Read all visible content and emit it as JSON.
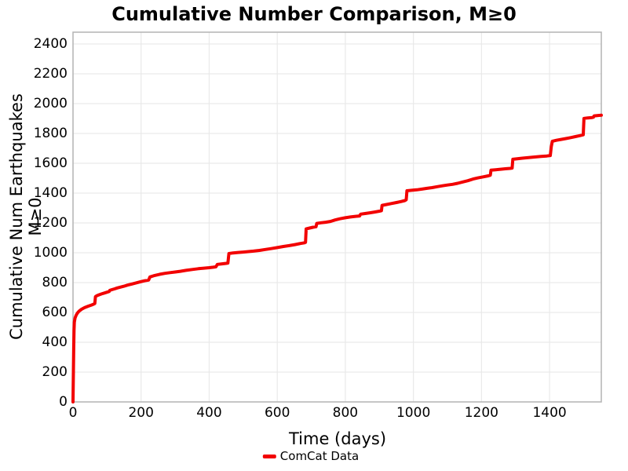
{
  "title": "Cumulative Number Comparison, M≥0",
  "legend": {
    "label": "ComCat Data"
  },
  "chart_data": {
    "type": "line",
    "title": "Cumulative Number Comparison, M≥0",
    "xlabel": "Time (days)",
    "ylabel": "Cumulative Num Earthquakes M≥0",
    "xlim": [
      0,
      1552
    ],
    "ylim": [
      0,
      2479
    ],
    "x_ticks": [
      0,
      200,
      400,
      600,
      800,
      1000,
      1200,
      1400
    ],
    "y_ticks": [
      0,
      200,
      400,
      600,
      800,
      1000,
      1200,
      1400,
      1600,
      1800,
      2000,
      2200,
      2400
    ],
    "grid": true,
    "grid_color": "#e9e9e9",
    "frame_color": "#b3b3b3",
    "background_color": "#ffffff",
    "legend_position": "bottom-center",
    "series": [
      {
        "name": "ComCat Data",
        "color": "#f20000",
        "points": [
          [
            0,
            0
          ],
          [
            1,
            160
          ],
          [
            2,
            360
          ],
          [
            3,
            480
          ],
          [
            4,
            535
          ],
          [
            6,
            562
          ],
          [
            9,
            580
          ],
          [
            13,
            596
          ],
          [
            18,
            609
          ],
          [
            25,
            621
          ],
          [
            34,
            632
          ],
          [
            45,
            642
          ],
          [
            55,
            650
          ],
          [
            62,
            657
          ],
          [
            64,
            660
          ],
          [
            66,
            706
          ],
          [
            70,
            712
          ],
          [
            76,
            718
          ],
          [
            84,
            724
          ],
          [
            92,
            730
          ],
          [
            100,
            736
          ],
          [
            106,
            740
          ],
          [
            108,
            748
          ],
          [
            115,
            753
          ],
          [
            122,
            758
          ],
          [
            130,
            764
          ],
          [
            140,
            770
          ],
          [
            150,
            776
          ],
          [
            160,
            783
          ],
          [
            172,
            790
          ],
          [
            184,
            797
          ],
          [
            196,
            804
          ],
          [
            210,
            812
          ],
          [
            222,
            817
          ],
          [
            226,
            838
          ],
          [
            240,
            848
          ],
          [
            255,
            856
          ],
          [
            270,
            862
          ],
          [
            285,
            867
          ],
          [
            300,
            871
          ],
          [
            315,
            876
          ],
          [
            332,
            882
          ],
          [
            350,
            888
          ],
          [
            368,
            893
          ],
          [
            385,
            897
          ],
          [
            400,
            900
          ],
          [
            412,
            903
          ],
          [
            420,
            906
          ],
          [
            424,
            922
          ],
          [
            438,
            926
          ],
          [
            450,
            929
          ],
          [
            455,
            931
          ],
          [
            458,
            995
          ],
          [
            470,
            999
          ],
          [
            485,
            1002
          ],
          [
            500,
            1005
          ],
          [
            515,
            1008
          ],
          [
            530,
            1011
          ],
          [
            548,
            1016
          ],
          [
            565,
            1022
          ],
          [
            582,
            1028
          ],
          [
            600,
            1035
          ],
          [
            618,
            1042
          ],
          [
            635,
            1048
          ],
          [
            652,
            1055
          ],
          [
            668,
            1062
          ],
          [
            680,
            1067
          ],
          [
            683,
            1070
          ],
          [
            685,
            1160
          ],
          [
            695,
            1166
          ],
          [
            705,
            1171
          ],
          [
            714,
            1175
          ],
          [
            716,
            1197
          ],
          [
            728,
            1201
          ],
          [
            742,
            1205
          ],
          [
            756,
            1210
          ],
          [
            770,
            1220
          ],
          [
            784,
            1228
          ],
          [
            800,
            1235
          ],
          [
            815,
            1240
          ],
          [
            830,
            1244
          ],
          [
            842,
            1247
          ],
          [
            845,
            1259
          ],
          [
            858,
            1263
          ],
          [
            872,
            1268
          ],
          [
            886,
            1273
          ],
          [
            900,
            1279
          ],
          [
            906,
            1282
          ],
          [
            908,
            1318
          ],
          [
            920,
            1323
          ],
          [
            935,
            1330
          ],
          [
            950,
            1337
          ],
          [
            963,
            1343
          ],
          [
            975,
            1350
          ],
          [
            979,
            1356
          ],
          [
            981,
            1416
          ],
          [
            995,
            1419
          ],
          [
            1010,
            1422
          ],
          [
            1025,
            1427
          ],
          [
            1040,
            1432
          ],
          [
            1055,
            1437
          ],
          [
            1070,
            1443
          ],
          [
            1085,
            1449
          ],
          [
            1100,
            1454
          ],
          [
            1115,
            1459
          ],
          [
            1130,
            1466
          ],
          [
            1145,
            1475
          ],
          [
            1160,
            1483
          ],
          [
            1175,
            1494
          ],
          [
            1190,
            1502
          ],
          [
            1205,
            1509
          ],
          [
            1220,
            1516
          ],
          [
            1226,
            1520
          ],
          [
            1228,
            1554
          ],
          [
            1242,
            1557
          ],
          [
            1256,
            1560
          ],
          [
            1270,
            1563
          ],
          [
            1284,
            1566
          ],
          [
            1290,
            1568
          ],
          [
            1292,
            1627
          ],
          [
            1305,
            1630
          ],
          [
            1320,
            1634
          ],
          [
            1338,
            1638
          ],
          [
            1356,
            1642
          ],
          [
            1375,
            1646
          ],
          [
            1392,
            1649
          ],
          [
            1402,
            1652
          ],
          [
            1405,
            1712
          ],
          [
            1408,
            1748
          ],
          [
            1420,
            1754
          ],
          [
            1434,
            1760
          ],
          [
            1448,
            1766
          ],
          [
            1462,
            1772
          ],
          [
            1476,
            1779
          ],
          [
            1490,
            1786
          ],
          [
            1499,
            1791
          ],
          [
            1501,
            1901
          ],
          [
            1512,
            1904
          ],
          [
            1525,
            1907
          ],
          [
            1529,
            1909
          ],
          [
            1531,
            1918
          ],
          [
            1540,
            1920
          ],
          [
            1552,
            1922
          ]
        ]
      }
    ]
  }
}
